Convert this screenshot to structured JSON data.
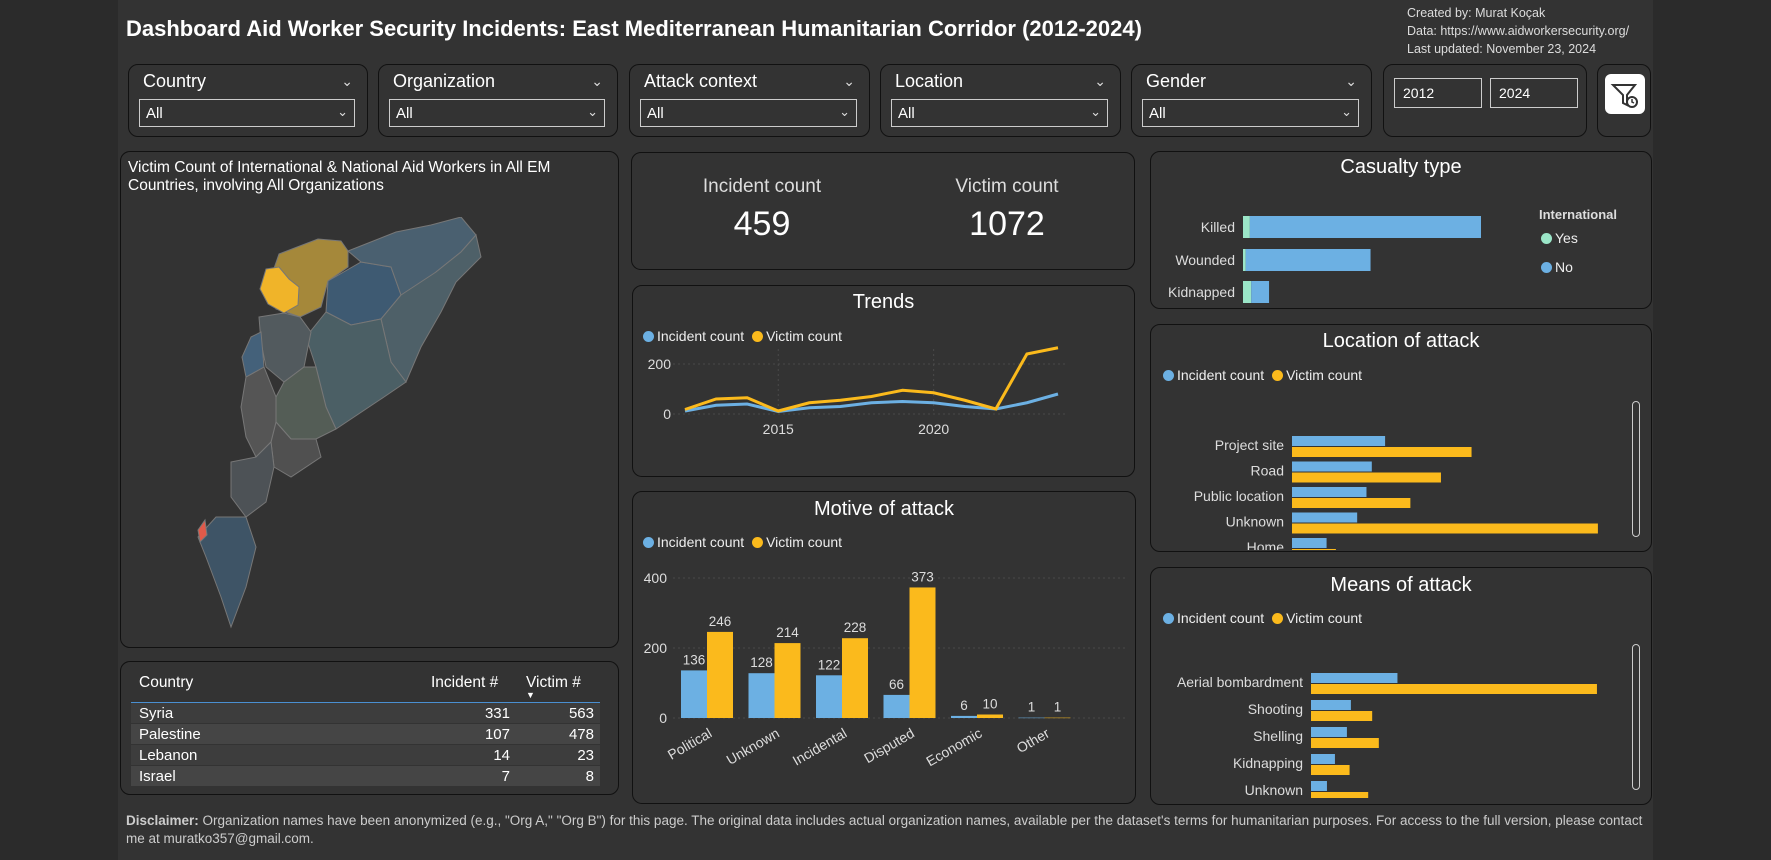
{
  "header": {
    "title": "Dashboard Aid Worker Security Incidents: East Mediterranean Humanitarian Corridor (2012-2024)",
    "created_by": "Created by: Murat Koçak",
    "data_source": "Data: https://www.aidworkersecurity.org/",
    "last_updated": "Last updated: November 23, 2024"
  },
  "filters": [
    {
      "label": "Country",
      "value": "All"
    },
    {
      "label": "Organization",
      "value": "All"
    },
    {
      "label": "Attack context",
      "value": "All"
    },
    {
      "label": "Location",
      "value": "All"
    },
    {
      "label": "Gender",
      "value": "All"
    }
  ],
  "year_range": {
    "start": "2012",
    "end": "2024"
  },
  "map": {
    "caption": "Victim Count of International & National Aid Workers in All EM Countries, involving All Organizations"
  },
  "kpi": {
    "incident_label": "Incident count",
    "incident_value": "459",
    "victim_label": "Victim count",
    "victim_value": "1072"
  },
  "legend": {
    "incident": "Incident count",
    "victim": "Victim count"
  },
  "colors": {
    "incident": "#6cb0e3",
    "victim": "#fbba1c",
    "intl_yes": "#9be6c8",
    "bg": "#333333"
  },
  "table": {
    "headers": [
      "Country",
      "Incident #",
      "Victim #"
    ],
    "rows": [
      [
        "Syria",
        "331",
        "563"
      ],
      [
        "Palestine",
        "107",
        "478"
      ],
      [
        "Lebanon",
        "14",
        "23"
      ],
      [
        "Israel",
        "7",
        "8"
      ]
    ]
  },
  "trends": {
    "title": "Trends",
    "x_ticks": [
      "2015",
      "2020"
    ],
    "y_ticks": [
      "0",
      "200"
    ]
  },
  "motive": {
    "title": "Motive of attack",
    "y_ticks": [
      "0",
      "200",
      "400"
    ]
  },
  "casualty": {
    "title": "Casualty type",
    "legend_title": "International",
    "legend_yes": "Yes",
    "legend_no": "No"
  },
  "location": {
    "title": "Location of attack"
  },
  "means": {
    "title": "Means of attack"
  },
  "chart_data": [
    {
      "type": "line",
      "title": "Trends",
      "x": [
        2012,
        2013,
        2014,
        2015,
        2016,
        2017,
        2018,
        2019,
        2020,
        2021,
        2022,
        2023,
        2024
      ],
      "series": [
        {
          "name": "Incident count",
          "values": [
            12,
            35,
            40,
            10,
            25,
            30,
            45,
            50,
            45,
            30,
            20,
            45,
            80
          ]
        },
        {
          "name": "Victim count",
          "values": [
            18,
            60,
            65,
            12,
            45,
            55,
            70,
            95,
            85,
            55,
            20,
            240,
            265
          ]
        }
      ],
      "ylim": [
        0,
        300
      ]
    },
    {
      "type": "bar",
      "title": "Motive of attack",
      "categories": [
        "Political",
        "Unknown",
        "Incidental",
        "Disputed",
        "Economic",
        "Other"
      ],
      "series": [
        {
          "name": "Incident count",
          "values": [
            136,
            128,
            122,
            66,
            6,
            1
          ]
        },
        {
          "name": "Victim count",
          "values": [
            246,
            214,
            228,
            373,
            10,
            1
          ]
        }
      ],
      "ylim": [
        0,
        400
      ]
    },
    {
      "type": "bar",
      "title": "Casualty type",
      "categories": [
        "Killed",
        "Wounded",
        "Kidnapped"
      ],
      "series": [
        {
          "name": "Yes",
          "values": [
            10,
            4,
            12
          ]
        },
        {
          "name": "No",
          "values": [
            340,
            182,
            26
          ]
        }
      ]
    },
    {
      "type": "bar",
      "title": "Location of attack",
      "categories": [
        "Project site",
        "Road",
        "Public location",
        "Unknown",
        "Home"
      ],
      "series": [
        {
          "name": "Incident count",
          "values": [
            70,
            60,
            56,
            49,
            26
          ]
        },
        {
          "name": "Victim count",
          "values": [
            135,
            112,
            89,
            230,
            33
          ]
        }
      ]
    },
    {
      "type": "bar",
      "title": "Means of attack",
      "categories": [
        "Aerial bombardment",
        "Shooting",
        "Shelling",
        "Kidnapping",
        "Unknown"
      ],
      "series": [
        {
          "name": "Incident count",
          "values": [
            65,
            30,
            27,
            18,
            12
          ]
        },
        {
          "name": "Victim count",
          "values": [
            215,
            46,
            51,
            29,
            43
          ]
        }
      ]
    }
  ],
  "footer": {
    "bold": "Disclaimer:",
    "text": " Organization names have been anonymized (e.g., \"Org A,\" \"Org B\") for this page. The original data includes actual organization names,  available per the dataset's terms for humanitarian purposes. For access to the full version, please contact me at muratko357@gmail.com."
  }
}
